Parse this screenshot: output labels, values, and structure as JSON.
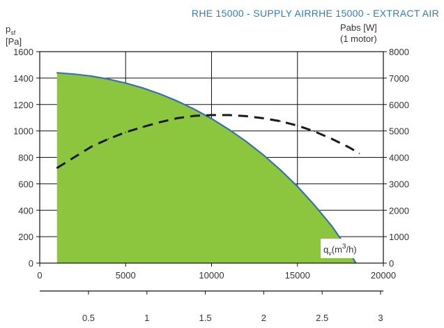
{
  "chart_data": {
    "type": "area",
    "title": "RHE 15000 - SUPPLY AIRRHE 15000 - EXTRACT AIR",
    "y_left_label_symbol": "p",
    "y_left_label_sub": "sf",
    "y_left_unit": "[Pa]",
    "y_right_label_line1": "Pabs [W]",
    "y_right_label_line2": "(1 motor)",
    "x_label_symbol": "q",
    "x_label_sub": "v",
    "x_label_unit_pre": "(m",
    "x_label_unit_sup": "3",
    "x_label_unit_post": "/h)",
    "xlim": [
      0,
      20000
    ],
    "ylim_left": [
      0,
      1600
    ],
    "ylim_right": [
      0,
      8000
    ],
    "x_ticks": [
      "0",
      "5000",
      "10000",
      "15000",
      "20000"
    ],
    "y_left_ticks": [
      "0",
      "200",
      "400",
      "600",
      "800",
      "1000",
      "1200",
      "1400",
      "1600"
    ],
    "y_right_ticks": [
      "0",
      "1000",
      "2000",
      "3000",
      "4000",
      "5000",
      "6000",
      "7000",
      "8000"
    ],
    "secondary_x_ticks": [
      "0.5",
      "1",
      "1.5",
      "2",
      "2.5",
      "3"
    ],
    "secondary_x_tick_values": [
      0.5,
      1,
      1.5,
      2,
      2.5,
      3
    ],
    "grid": true,
    "colors": {
      "fill": "#8cc63f",
      "pressure_line": "#3a6fb0",
      "power_line": "#1a1a1a",
      "title": "#2f7fb5"
    },
    "series": [
      {
        "axis": "left",
        "style": "filled-area",
        "x": [
          1000,
          2000,
          3000,
          4000,
          5000,
          6000,
          7000,
          8000,
          9000,
          10000,
          11000,
          12000,
          13000,
          14000,
          15000,
          16000,
          17000,
          17800,
          18400
        ],
        "y": [
          1440,
          1430,
          1415,
          1392,
          1362,
          1325,
          1280,
          1226,
          1164,
          1093,
          1012,
          922,
          820,
          706,
          580,
          437,
          280,
          130,
          0
        ]
      },
      {
        "axis": "right",
        "style": "dashed",
        "x": [
          1000,
          2000,
          3000,
          4000,
          5000,
          6000,
          7000,
          8000,
          9000,
          10000,
          11000,
          12000,
          13000,
          14000,
          15000,
          16000,
          17000,
          18000,
          18600
        ],
        "y": [
          3600,
          4000,
          4400,
          4700,
          4950,
          5150,
          5330,
          5480,
          5570,
          5600,
          5600,
          5560,
          5480,
          5370,
          5200,
          4980,
          4700,
          4380,
          4150
        ]
      }
    ]
  }
}
